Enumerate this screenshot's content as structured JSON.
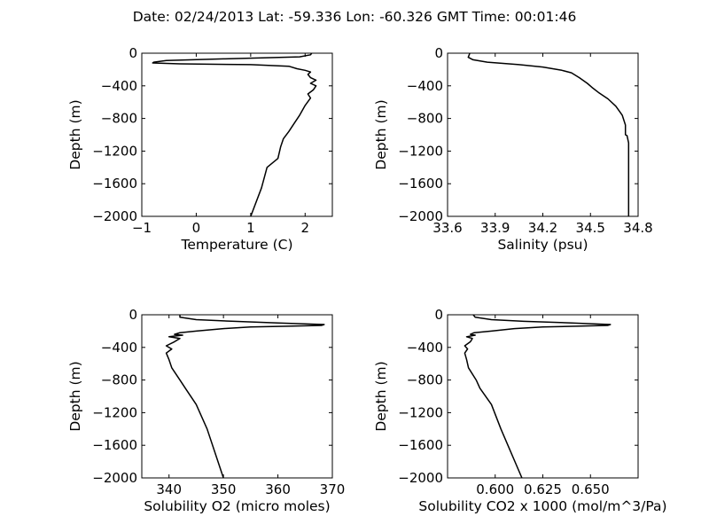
{
  "figure": {
    "suptitle": "Date: 02/24/2013  Lat:  -59.336 Lon:  -60.326  GMT Time: 00:01:46"
  },
  "chart_data": [
    {
      "type": "line",
      "xlabel": "Temperature (C)",
      "ylabel": "Depth (m)",
      "xlim": [
        -1,
        2.5
      ],
      "ylim": [
        -2000,
        0
      ],
      "xticks": [
        -1,
        0,
        1,
        2
      ],
      "xtick_labels": [
        "−1",
        "0",
        "1",
        "2"
      ],
      "yticks": [
        0,
        -400,
        -800,
        -1200,
        -1600,
        -2000
      ],
      "ytick_labels": [
        "0",
        "−400",
        "−800",
        "−1200",
        "−1600",
        "−2000"
      ],
      "grid": false,
      "series": [
        {
          "x": [
            2.12,
            2.1,
            1.9,
            0.5,
            -0.55,
            -0.78,
            -0.8,
            -0.3,
            1.0,
            1.7,
            1.85,
            2.0,
            2.1,
            2.05,
            2.1,
            2.2,
            2.1,
            2.2,
            2.15,
            2.05,
            2.1,
            2.0,
            1.9,
            1.8,
            1.7,
            1.6,
            1.55,
            1.5,
            1.3,
            1.2,
            1.0
          ],
          "y": [
            0,
            -20,
            -45,
            -70,
            -90,
            -110,
            -120,
            -130,
            -140,
            -160,
            -190,
            -210,
            -230,
            -260,
            -300,
            -330,
            -370,
            -400,
            -450,
            -500,
            -550,
            -640,
            -760,
            -860,
            -960,
            -1050,
            -1150,
            -1290,
            -1400,
            -1650,
            -2000
          ]
        }
      ]
    },
    {
      "type": "line",
      "xlabel": "Salinity (psu)",
      "ylabel": "Depth (m)",
      "xlim": [
        33.6,
        34.8
      ],
      "ylim": [
        -2000,
        0
      ],
      "xticks": [
        33.6,
        33.9,
        34.2,
        34.5,
        34.8
      ],
      "xtick_labels": [
        "33.6",
        "33.9",
        "34.2",
        "34.5",
        "34.8"
      ],
      "yticks": [
        0,
        -400,
        -800,
        -1200,
        -1600,
        -2000
      ],
      "ytick_labels": [
        "0",
        "−400",
        "−800",
        "−1200",
        "−1600",
        "−2000"
      ],
      "grid": false,
      "series": [
        {
          "x": [
            33.74,
            33.73,
            33.76,
            33.85,
            34.05,
            34.2,
            34.32,
            34.38,
            34.43,
            34.48,
            34.51,
            34.55,
            34.61,
            34.66,
            34.7,
            34.72,
            34.72,
            34.73,
            34.74,
            34.74,
            34.74
          ],
          "y": [
            0,
            -50,
            -80,
            -110,
            -140,
            -170,
            -210,
            -240,
            -300,
            -370,
            -420,
            -480,
            -560,
            -650,
            -760,
            -880,
            -1000,
            -1010,
            -1100,
            -1500,
            -2000
          ]
        }
      ]
    },
    {
      "type": "line",
      "xlabel": "Solubility O2 (micro moles)",
      "ylabel": "Depth (m)",
      "xlim": [
        335,
        370
      ],
      "ylim": [
        -2000,
        0
      ],
      "xticks": [
        340,
        350,
        360,
        370
      ],
      "xtick_labels": [
        "340",
        "350",
        "360",
        "370"
      ],
      "yticks": [
        0,
        -400,
        -800,
        -1200,
        -1600,
        -2000
      ],
      "ytick_labels": [
        "0",
        "−400",
        "−800",
        "−1200",
        "−1600",
        "−2000"
      ],
      "grid": false,
      "series": [
        {
          "x": [
            342,
            342,
            345,
            352,
            360,
            368.5,
            368,
            362,
            355,
            350,
            345,
            342,
            341,
            342.5,
            340,
            342,
            341,
            339.5,
            340.5,
            339.5,
            340,
            340.5,
            342,
            343,
            345,
            347,
            350
          ],
          "y": [
            0,
            -30,
            -60,
            -80,
            -100,
            -120,
            -130,
            -140,
            -150,
            -170,
            -200,
            -220,
            -240,
            -250,
            -270,
            -290,
            -330,
            -380,
            -420,
            -470,
            -550,
            -650,
            -800,
            -900,
            -1100,
            -1400,
            -2000
          ]
        }
      ]
    },
    {
      "type": "line",
      "xlabel": "Solubility CO2 x 1000 (mol/m^3/Pa)",
      "ylabel": "Depth (m)",
      "xlim": [
        0.575,
        0.675
      ],
      "ylim": [
        -2000,
        0
      ],
      "xticks": [
        0.6,
        0.625,
        0.65
      ],
      "xtick_labels": [
        "0.600",
        "0.625",
        "0.650"
      ],
      "yticks": [
        0,
        -400,
        -800,
        -1200,
        -1600,
        -2000
      ],
      "ytick_labels": [
        "0",
        "−400",
        "−800",
        "−1200",
        "−1600",
        "−2000"
      ],
      "grid": false,
      "series": [
        {
          "x": [
            0.5885,
            0.5895,
            0.598,
            0.615,
            0.64,
            0.6605,
            0.659,
            0.643,
            0.625,
            0.61,
            0.598,
            0.589,
            0.587,
            0.5895,
            0.585,
            0.588,
            0.587,
            0.584,
            0.5855,
            0.584,
            0.585,
            0.586,
            0.59,
            0.592,
            0.598,
            0.603,
            0.614
          ],
          "y": [
            0,
            -30,
            -60,
            -80,
            -100,
            -120,
            -130,
            -140,
            -150,
            -170,
            -200,
            -220,
            -240,
            -250,
            -270,
            -290,
            -330,
            -380,
            -420,
            -470,
            -550,
            -650,
            -800,
            -900,
            -1100,
            -1400,
            -2000
          ]
        }
      ]
    }
  ]
}
